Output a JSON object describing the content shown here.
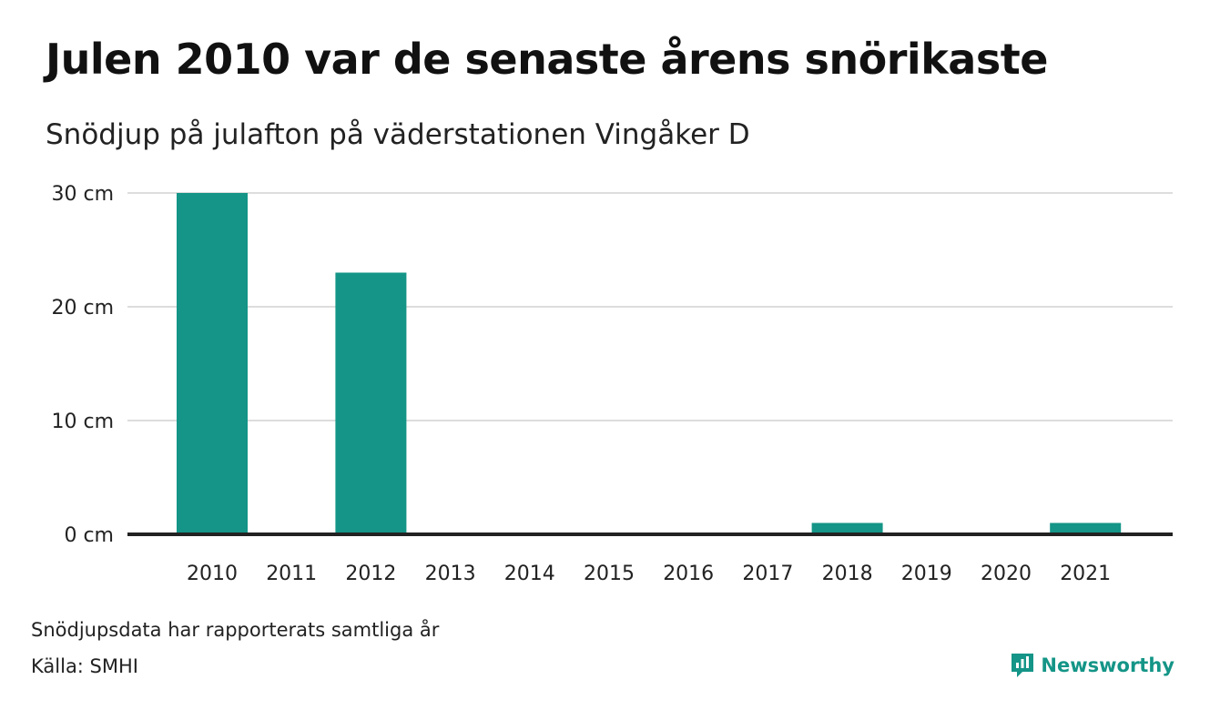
{
  "header": {
    "title": "Julen 2010 var de senaste årens snörikaste",
    "subtitle": "Snödjup på julafton på väderstationen Vingåker D"
  },
  "footer": {
    "note": "Snödjupsdata har rapporterats samtliga år",
    "source": "Källa: SMHI",
    "brand": "Newsworthy"
  },
  "colors": {
    "bar": "#149587",
    "brand": "#149587",
    "gridline": "#dddddd",
    "baseline": "#222222"
  },
  "chart_data": {
    "type": "bar",
    "categories": [
      "2010",
      "2011",
      "2012",
      "2013",
      "2014",
      "2015",
      "2016",
      "2017",
      "2018",
      "2019",
      "2020",
      "2021"
    ],
    "values": [
      30,
      0,
      23,
      0,
      0,
      0,
      0,
      0,
      1,
      0,
      0,
      1
    ],
    "ylim": [
      0,
      30
    ],
    "yticks": [
      0,
      10,
      20,
      30
    ],
    "ytick_labels": [
      "0 cm",
      "10 cm",
      "20 cm",
      "30 cm"
    ],
    "grid": true
  }
}
